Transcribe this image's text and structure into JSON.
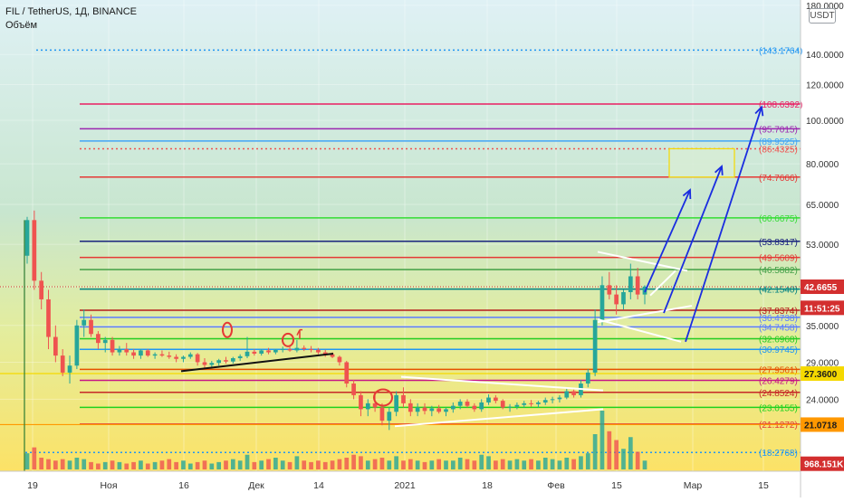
{
  "chart_data": {
    "type": "candlestick",
    "symbol_line": "FIL / TetherUS, 1Д, BINANCE",
    "volume_label": "Объём",
    "currency": "USDT",
    "y_scale": "log",
    "ylim": [
      16.6,
      185
    ],
    "price_ticks": [
      "180.0000",
      "140.0000",
      "120.0000",
      "100.0000",
      "80.0000",
      "65.0000",
      "53.0000",
      "42.6655",
      "35.0000",
      "29.0000",
      "27.3600",
      "24.0000",
      "21.0718"
    ],
    "x_ticks": [
      "19",
      "Ноя",
      "16",
      "Дек",
      "14",
      "2021",
      "18",
      "Фев",
      "15",
      "Мар",
      "15"
    ],
    "level_labels": [
      {
        "text": "(143.1764)",
        "price": 143.1764,
        "color": "#2196f3",
        "style": "dotted"
      },
      {
        "text": "(108.6392)",
        "price": 108.6392,
        "color": "#e91e63",
        "style": "solid"
      },
      {
        "text": "(95.7015)",
        "price": 95.7015,
        "color": "#9c27b0",
        "style": "solid"
      },
      {
        "text": "(89.9525)",
        "price": 89.9525,
        "color": "#42a5f5",
        "style": "solid"
      },
      {
        "text": "(86.4325)",
        "price": 86.4325,
        "color": "#ef5350",
        "style": "dotted"
      },
      {
        "text": "(74.7666)",
        "price": 74.7666,
        "color": "#e53935",
        "style": "solid"
      },
      {
        "text": "(60.6675)",
        "price": 60.6675,
        "color": "#33dd33",
        "style": "solid"
      },
      {
        "text": "(53.8317)",
        "price": 53.8317,
        "color": "#1a237e",
        "style": "solid"
      },
      {
        "text": "(49.5609)",
        "price": 49.5609,
        "color": "#e53935",
        "style": "solid"
      },
      {
        "text": "(46.5882)",
        "price": 46.5882,
        "color": "#43a047",
        "style": "solid"
      },
      {
        "text": "(42.1540)",
        "price": 42.154,
        "color": "#008080",
        "style": "solid"
      },
      {
        "text": "(37.8374)",
        "price": 37.8374,
        "color": "#b71c1c",
        "style": "solid"
      },
      {
        "text": "(36.4738)",
        "price": 36.4738,
        "color": "#5b7dff",
        "style": "solid"
      },
      {
        "text": "(34.7458)",
        "price": 34.7458,
        "color": "#5b7dff",
        "style": "solid"
      },
      {
        "text": "(32.6968)",
        "price": 32.6968,
        "color": "#22cc22",
        "style": "solid"
      },
      {
        "text": "(30.9745)",
        "price": 30.9745,
        "color": "#2196f3",
        "style": "solid"
      },
      {
        "text": "(27.9561)",
        "price": 27.9561,
        "color": "#e65100",
        "style": "solid"
      },
      {
        "text": "(26.4279)",
        "price": 26.4279,
        "color": "#c71585",
        "style": "solid"
      },
      {
        "text": "(24.8524)",
        "price": 24.8524,
        "color": "#c62828",
        "style": "solid"
      },
      {
        "text": "(23.0155)",
        "price": 23.0155,
        "color": "#1ed21e",
        "style": "solid"
      },
      {
        "text": "(21.1272)",
        "price": 21.1272,
        "color": "#e53935",
        "style": "solid"
      },
      {
        "text": "(18.2768)",
        "price": 18.2768,
        "color": "#2196f3",
        "style": "dotted"
      }
    ],
    "badges": [
      {
        "text": "42.6655",
        "price": 42.6655,
        "bg": "#d32f2f",
        "fg": "#ffffff"
      },
      {
        "text": "11:51:25",
        "price": 38.3,
        "bg": "#d32f2f",
        "fg": "#ffffff"
      },
      {
        "text": "27.3600",
        "price": 27.36,
        "bg": "#f5d900",
        "fg": "#1a1a1a"
      },
      {
        "text": "21.0718",
        "price": 21.0718,
        "bg": "#ff9800",
        "fg": "#1a1a1a"
      },
      {
        "text": "968.151K",
        "price": 17.25,
        "bg": "#d32f2f",
        "fg": "#ffffff"
      }
    ],
    "candles_ohlc": [
      [
        50,
        61,
        48,
        60
      ],
      [
        60,
        63,
        42,
        44
      ],
      [
        44,
        46,
        38,
        40
      ],
      [
        40,
        42,
        31,
        33
      ],
      [
        33,
        35,
        29,
        30
      ],
      [
        30,
        31,
        27,
        27.5
      ],
      [
        27.5,
        30,
        26,
        28.5
      ],
      [
        28.5,
        36,
        28,
        35
      ],
      [
        35,
        38,
        33,
        36
      ],
      [
        36,
        37,
        33,
        33.5
      ],
      [
        33.5,
        34,
        31,
        32
      ],
      [
        32,
        33,
        30.5,
        32.5
      ],
      [
        32.5,
        33,
        30,
        30.5
      ],
      [
        30.5,
        31.5,
        30,
        31
      ],
      [
        31,
        32,
        30,
        30.5
      ],
      [
        30.5,
        31,
        29.5,
        30
      ],
      [
        30,
        31,
        29.5,
        30.8
      ],
      [
        30.8,
        31,
        29.8,
        30
      ],
      [
        30,
        30.5,
        29.5,
        30.2
      ],
      [
        30.2,
        30.8,
        29.8,
        30
      ],
      [
        30,
        30.6,
        29.5,
        29.8
      ],
      [
        29.8,
        30.2,
        29,
        29.5
      ],
      [
        29.5,
        30,
        29,
        29.8
      ],
      [
        29.8,
        30.5,
        29.5,
        30.2
      ],
      [
        30.2,
        30.4,
        28.5,
        29
      ],
      [
        29,
        29.6,
        28.2,
        28.6
      ],
      [
        28.6,
        29.2,
        28.2,
        28.9
      ],
      [
        28.9,
        29.5,
        28.5,
        29.3
      ],
      [
        29.3,
        29.8,
        28.8,
        29.1
      ],
      [
        29.1,
        29.8,
        28.8,
        29.6
      ],
      [
        29.6,
        30.2,
        29.2,
        29.9
      ],
      [
        29.9,
        33,
        29.6,
        30.6
      ],
      [
        30.6,
        31,
        30,
        30.3
      ],
      [
        30.3,
        31,
        30,
        30.8
      ],
      [
        30.8,
        31.2,
        30.2,
        30.5
      ],
      [
        30.5,
        31,
        30.2,
        30.9
      ],
      [
        30.9,
        31.4,
        30.5,
        31
      ],
      [
        31,
        31.6,
        30.6,
        30.8
      ],
      [
        30.8,
        32.5,
        30.5,
        31.2
      ],
      [
        31.2,
        31.6,
        30.7,
        31
      ],
      [
        31,
        31.5,
        30.5,
        30.9
      ],
      [
        30.9,
        31.2,
        30.2,
        30.5
      ],
      [
        30.5,
        30.9,
        29.8,
        30.2
      ],
      [
        30.2,
        30.5,
        29.6,
        29.8
      ],
      [
        29.8,
        30,
        28.5,
        29
      ],
      [
        29,
        29.2,
        25.5,
        26
      ],
      [
        26,
        26.5,
        24,
        24.5
      ],
      [
        24.5,
        25,
        22,
        22.8
      ],
      [
        22.8,
        24,
        22,
        23.5
      ],
      [
        23.5,
        25,
        22.5,
        23
      ],
      [
        23,
        23.5,
        21,
        21.5
      ],
      [
        21.5,
        23,
        20.5,
        22.5
      ],
      [
        22.5,
        25,
        22,
        24.5
      ],
      [
        24.5,
        25.5,
        23,
        23.5
      ],
      [
        23.5,
        24,
        22,
        22.5
      ],
      [
        22.5,
        23.5,
        22,
        23
      ],
      [
        23,
        23.5,
        22.2,
        22.6
      ],
      [
        22.6,
        23.2,
        22,
        22.9
      ],
      [
        22.9,
        23.3,
        22.3,
        22.5
      ],
      [
        22.5,
        23,
        22,
        22.8
      ],
      [
        22.8,
        23.6,
        22.4,
        23.2
      ],
      [
        23.2,
        24,
        22.8,
        23.7
      ],
      [
        23.7,
        24,
        23,
        23.2
      ],
      [
        23.2,
        23.5,
        22.5,
        22.8
      ],
      [
        22.8,
        24,
        22.5,
        23.6
      ],
      [
        23.6,
        24.6,
        23.3,
        24.2
      ],
      [
        24.2,
        24.5,
        23.5,
        23.8
      ],
      [
        23.8,
        24,
        22.8,
        23
      ],
      [
        23,
        23.4,
        22.5,
        23.1
      ],
      [
        23.1,
        23.6,
        22.8,
        23.3
      ],
      [
        23.3,
        23.8,
        23,
        23.5
      ],
      [
        23.5,
        23.9,
        23.1,
        23.4
      ],
      [
        23.4,
        23.8,
        23,
        23.6
      ],
      [
        23.6,
        24.2,
        23.3,
        23.9
      ],
      [
        23.9,
        24.3,
        23.5,
        24
      ],
      [
        24,
        24.5,
        23.6,
        24.2
      ],
      [
        24.2,
        25.4,
        24,
        25
      ],
      [
        25,
        25.2,
        24.2,
        24.5
      ],
      [
        24.5,
        26.5,
        24.2,
        26
      ],
      [
        26,
        28,
        25.5,
        27.5
      ],
      [
        27.5,
        38,
        27,
        36
      ],
      [
        36,
        45,
        35,
        43
      ],
      [
        43,
        46,
        40,
        41
      ],
      [
        41,
        43,
        37,
        39
      ],
      [
        39,
        42,
        38,
        41.5
      ],
      [
        41.5,
        48,
        40,
        45
      ],
      [
        45,
        47,
        40,
        41
      ],
      [
        41,
        43,
        39,
        42.7
      ]
    ],
    "volume": [
      0.55,
      0.75,
      0.4,
      0.35,
      0.3,
      0.35,
      0.3,
      0.4,
      0.35,
      0.25,
      0.2,
      0.25,
      0.3,
      0.25,
      0.2,
      0.25,
      0.3,
      0.2,
      0.25,
      0.3,
      0.35,
      0.25,
      0.3,
      0.2,
      0.25,
      0.3,
      0.2,
      0.25,
      0.3,
      0.35,
      0.3,
      0.5,
      0.25,
      0.3,
      0.35,
      0.4,
      0.3,
      0.25,
      0.45,
      0.3,
      0.25,
      0.3,
      0.25,
      0.3,
      0.35,
      0.4,
      0.5,
      0.45,
      0.3,
      0.35,
      0.4,
      0.3,
      0.45,
      0.3,
      0.35,
      0.3,
      0.25,
      0.3,
      0.35,
      0.3,
      0.3,
      0.4,
      0.35,
      0.3,
      0.5,
      0.45,
      0.3,
      0.35,
      0.3,
      0.35,
      0.3,
      0.35,
      0.3,
      0.4,
      0.35,
      0.3,
      0.4,
      0.35,
      0.45,
      0.55,
      1.2,
      2.0,
      1.3,
      1.0,
      0.7,
      1.1,
      0.6,
      0.3
    ]
  }
}
